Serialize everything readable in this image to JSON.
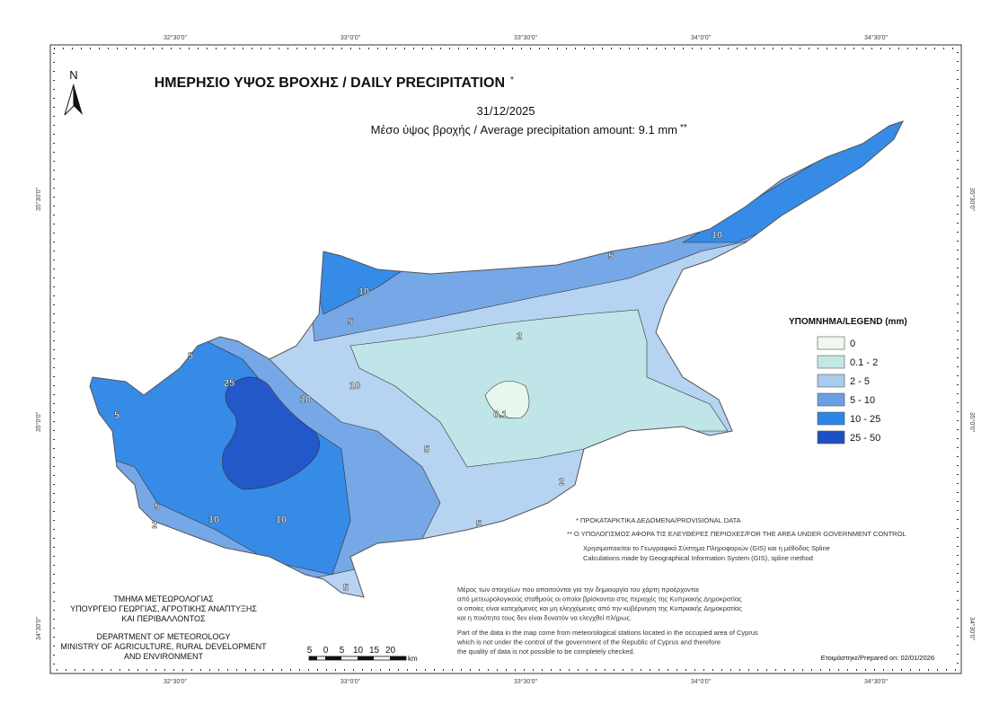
{
  "title": "ΗΜΕΡΗΣΙΟ ΥΨΟΣ ΒΡΟΧΗΣ / DAILY PRECIPITATION",
  "title_mark": "*",
  "date": "31/12/2025",
  "average": "Μέσο ύψος βροχής / Average precipitation amount: 9.1 mm",
  "average_mark": "**",
  "north": "N",
  "lon_ticks": [
    "32°30'0\"",
    "33°0'0\"",
    "33°30'0\"",
    "34°0'0\"",
    "34°30'0\""
  ],
  "lat_ticks": [
    "35°30'0\"",
    "35°0'0\"",
    "34°30'0\""
  ],
  "legend": {
    "title": "ΥΠΟΜΝΗΜΑ/LEGEND (mm)",
    "items": [
      {
        "label": "0",
        "color": "#eefaee"
      },
      {
        "label": "0.1 - 2",
        "color": "#c2e8e6"
      },
      {
        "label": "2 - 5",
        "color": "#a9cbee"
      },
      {
        "label": "5 - 10",
        "color": "#6b9fe4"
      },
      {
        "label": "10 - 25",
        "color": "#2c86e6"
      },
      {
        "label": "25 - 50",
        "color": "#1f4fc4"
      }
    ]
  },
  "contour_labels": [
    "10",
    "5",
    "2",
    "5",
    "10",
    "10",
    "10",
    "0.1",
    "5",
    "2",
    "5",
    "10",
    "10",
    "5",
    "2",
    "5",
    "25",
    "5",
    "5"
  ],
  "provisional_note": "* ΠΡΟΚΑΤΑΡΚΤΙΚΑ ΔΕΔΟΜΕΝΑ/PROVISIONAL DATA",
  "area_note": "** Ο ΥΠΟΛΟΓΙΣΜΟΣ ΑΦΟΡΑ ΤΙΣ ΕΛΕΥΘΕΡΕΣ ΠΕΡΙΟΧΕΣ/FOR THE AREA UNDER GOVERNMENT CONTROL",
  "method_notes": [
    "Χρησιμοποιείται το Γεωγραφικό Σύστημα Πληροφοριών (GIS) και η μέθοδος Spline",
    "Calculations made by Geographical Information System (GIS), spline method"
  ],
  "data_notes_gr": [
    "Μέρος των στοιχείων που απαιτούνται για την δημιουργία του χάρτη προέρχονται",
    "από μετεωρολογικούς σταθμούς οι οποίοι βρίσκονται στις περιοχές της Κυπριακής Δημοκρατίας",
    "οι οποίες είναι κατεχόμενες και μη ελεγχόμενες από την κυβέρνηση της Κυπριακής Δημοκρατίας",
    "και η ποιότητα τους δεν είναι δυνατόν να ελεγχθεί πλήρως."
  ],
  "data_notes_en": [
    "Part of the data in the map come from meteorological stations located in the occupied area of Cyprus",
    "which is not under the control of the government of the Republic of Cyprus and therefore",
    "the quality of data is not possible to be completely checked."
  ],
  "department_gr": [
    "ΤΜΗΜΑ ΜΕΤΕΩΡΟΛΟΓΙΑΣ",
    "ΥΠΟΥΡΓΕΙΟ ΓΕΩΡΓΙΑΣ, ΑΓΡΟΤΙΚΗΣ ΑΝΑΠΤΥΞΗΣ",
    "ΚΑΙ ΠΕΡΙΒΑΛΛΟΝΤΟΣ"
  ],
  "department_en": [
    "DEPARTMENT OF METEOROLOGY",
    "MINISTRY OF AGRICULTURE, RURAL DEVELOPMENT",
    "AND ENVIRONMENT"
  ],
  "scale": {
    "labels": [
      "5",
      "0",
      "5",
      "10",
      "15",
      "20"
    ],
    "unit": "km"
  },
  "prepared": "Ετοιμάστηκε/Prepared on: 02/01/2026"
}
